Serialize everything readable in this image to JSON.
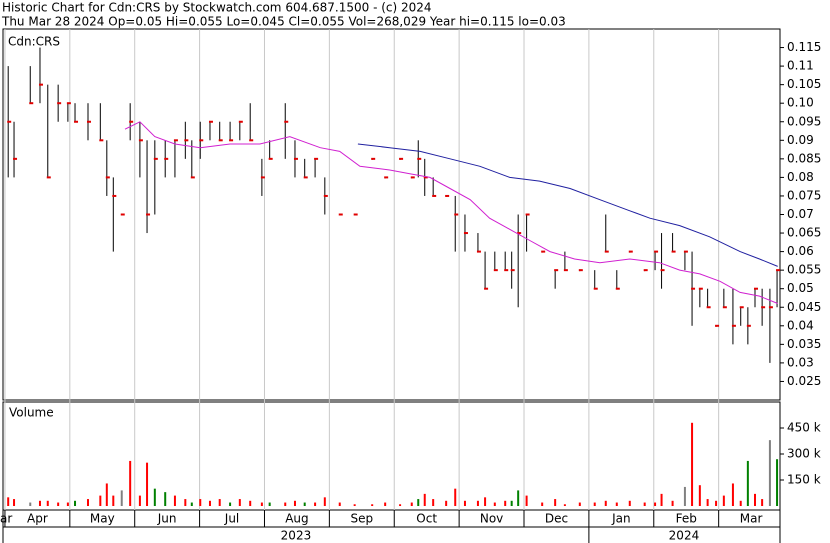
{
  "chart_data": {
    "type": "ohlc",
    "title": "Historic Chart for Cdn:CRS by Stockwatch.com 604.687.1500 - (c) 2024",
    "subtitle": "Thu Mar 28 2024  Op=0.05  Hi=0.055  Lo=0.045  Cl=0.055  Vol=268,029  Year hi=0.115  lo=0.03",
    "symbol_label": "Cdn:CRS",
    "volume_label": "Volume",
    "x": [
      1.05,
      1.14,
      1.39,
      1.54,
      1.66,
      1.82,
      1.97,
      2.08,
      2.28,
      2.47,
      2.57,
      2.67,
      2.8,
      2.93,
      3.08,
      3.19,
      3.31,
      3.47,
      3.62,
      3.78,
      3.88,
      4.01,
      4.16,
      4.31,
      4.47,
      4.62,
      4.78,
      4.96,
      5.08,
      5.32,
      5.47,
      5.62,
      5.78,
      5.93,
      6.16,
      6.39,
      6.66,
      6.86,
      7.09,
      7.27,
      7.37,
      7.47,
      7.6,
      7.8,
      7.94,
      8.09,
      8.29,
      8.4,
      8.55,
      8.71,
      8.81,
      8.91,
      9.04,
      9.28,
      9.48,
      9.63,
      9.86,
      10.09,
      10.26,
      10.43,
      10.63,
      10.86,
      11.02,
      11.12,
      11.29,
      11.48,
      11.59,
      11.71,
      11.83,
      11.96,
      12.08,
      12.22,
      12.34,
      12.45,
      12.56,
      12.67,
      12.79,
      12.9
    ],
    "high": [
      0.11,
      0.095,
      0.11,
      0.115,
      0.105,
      0.105,
      0.1,
      0.1,
      0.1,
      0.1,
      0.09,
      0.08,
      0.07,
      0.1,
      0.095,
      0.09,
      0.09,
      0.09,
      0.09,
      0.095,
      0.09,
      0.095,
      0.095,
      0.095,
      0.095,
      0.095,
      0.1,
      0.085,
      0.09,
      0.1,
      0.09,
      0.085,
      0.085,
      0.08,
      0.07,
      0.07,
      0.085,
      0.08,
      0.085,
      0.08,
      0.09,
      0.085,
      0.08,
      0.075,
      0.075,
      0.07,
      0.065,
      0.06,
      0.06,
      0.06,
      0.06,
      0.07,
      0.07,
      0.06,
      0.055,
      0.06,
      0.055,
      0.055,
      0.07,
      0.055,
      0.06,
      0.055,
      0.06,
      0.065,
      0.065,
      0.06,
      0.06,
      0.05,
      0.05,
      0.04,
      0.05,
      0.05,
      0.045,
      0.045,
      0.05,
      0.05,
      0.05,
      0.055
    ],
    "low": [
      0.08,
      0.08,
      0.1,
      0.1,
      0.08,
      0.095,
      0.095,
      0.095,
      0.09,
      0.09,
      0.075,
      0.06,
      0.07,
      0.09,
      0.08,
      0.065,
      0.07,
      0.08,
      0.08,
      0.085,
      0.08,
      0.085,
      0.09,
      0.09,
      0.09,
      0.09,
      0.09,
      0.075,
      0.085,
      0.085,
      0.08,
      0.08,
      0.08,
      0.07,
      0.07,
      0.07,
      0.085,
      0.08,
      0.085,
      0.08,
      0.08,
      0.075,
      0.075,
      0.075,
      0.06,
      0.06,
      0.06,
      0.05,
      0.055,
      0.055,
      0.05,
      0.045,
      0.06,
      0.06,
      0.05,
      0.055,
      0.055,
      0.05,
      0.06,
      0.05,
      0.06,
      0.055,
      0.055,
      0.05,
      0.06,
      0.055,
      0.04,
      0.045,
      0.045,
      0.04,
      0.045,
      0.035,
      0.04,
      0.035,
      0.045,
      0.04,
      0.03,
      0.045
    ],
    "close": [
      0.095,
      0.085,
      0.1,
      0.105,
      0.08,
      0.1,
      0.1,
      0.095,
      0.095,
      0.09,
      0.08,
      0.075,
      0.07,
      0.095,
      0.09,
      0.07,
      0.085,
      0.085,
      0.09,
      0.09,
      0.08,
      0.09,
      0.095,
      0.09,
      0.09,
      0.095,
      0.09,
      0.08,
      0.085,
      0.095,
      0.085,
      0.08,
      0.085,
      0.075,
      0.07,
      0.07,
      0.085,
      0.08,
      0.085,
      0.08,
      0.085,
      0.08,
      0.075,
      0.075,
      0.07,
      0.065,
      0.06,
      0.05,
      0.055,
      0.055,
      0.055,
      0.065,
      0.07,
      0.06,
      0.055,
      0.055,
      0.055,
      0.05,
      0.06,
      0.05,
      0.06,
      0.055,
      0.06,
      0.055,
      0.06,
      0.06,
      0.05,
      0.05,
      0.045,
      0.04,
      0.045,
      0.04,
      0.045,
      0.04,
      0.05,
      0.045,
      0.045,
      0.055
    ],
    "volume": [
      50000,
      40000,
      20000,
      30000,
      30000,
      20000,
      20000,
      30000,
      40000,
      60000,
      130000,
      60000,
      90000,
      260000,
      60000,
      250000,
      100000,
      80000,
      60000,
      40000,
      20000,
      40000,
      30000,
      40000,
      20000,
      40000,
      30000,
      20000,
      20000,
      20000,
      30000,
      20000,
      20000,
      50000,
      20000,
      10000,
      10000,
      20000,
      10000,
      20000,
      40000,
      70000,
      40000,
      30000,
      100000,
      30000,
      30000,
      50000,
      20000,
      30000,
      30000,
      90000,
      60000,
      20000,
      40000,
      10000,
      20000,
      20000,
      30000,
      20000,
      30000,
      20000,
      20000,
      70000,
      30000,
      110000,
      480000,
      120000,
      40000,
      30000,
      60000,
      130000,
      30000,
      260000,
      70000,
      40000,
      380000,
      270000
    ],
    "volume_colors": [
      "red",
      "red",
      "gray",
      "red",
      "red",
      "red",
      "red",
      "green",
      "red",
      "red",
      "red",
      "red",
      "gray",
      "red",
      "red",
      "red",
      "green",
      "green",
      "red",
      "red",
      "green",
      "red",
      "red",
      "red",
      "green",
      "red",
      "red",
      "red",
      "green",
      "red",
      "red",
      "green",
      "red",
      "red",
      "red",
      "red",
      "red",
      "red",
      "red",
      "red",
      "green",
      "red",
      "red",
      "red",
      "red",
      "red",
      "red",
      "red",
      "red",
      "red",
      "green",
      "green",
      "red",
      "red",
      "red",
      "red",
      "red",
      "red",
      "red",
      "red",
      "red",
      "red",
      "red",
      "red",
      "red",
      "gray",
      "red",
      "red",
      "red",
      "red",
      "red",
      "red",
      "red",
      "green",
      "red",
      "red",
      "gray",
      "green"
    ],
    "ma_short": {
      "color": "#d020d0",
      "x": [
        2.85,
        3.08,
        3.31,
        3.62,
        4.01,
        4.47,
        4.93,
        5.39,
        5.86,
        6.16,
        6.47,
        6.93,
        7.24,
        7.55,
        7.86,
        8.17,
        8.47,
        8.78,
        9.09,
        9.4,
        9.78,
        10.17,
        10.63,
        11.09,
        11.4,
        11.71,
        12.02,
        12.33,
        12.63,
        12.91
      ],
      "values": [
        0.093,
        0.095,
        0.091,
        0.089,
        0.088,
        0.089,
        0.089,
        0.091,
        0.088,
        0.087,
        0.083,
        0.082,
        0.081,
        0.08,
        0.077,
        0.074,
        0.069,
        0.066,
        0.063,
        0.06,
        0.058,
        0.057,
        0.058,
        0.057,
        0.055,
        0.054,
        0.052,
        0.049,
        0.048,
        0.046
      ]
    },
    "ma_long": {
      "color": "#2020a0",
      "x": [
        6.44,
        6.93,
        7.4,
        7.86,
        8.32,
        8.78,
        9.24,
        9.71,
        10.17,
        10.63,
        10.94,
        11.4,
        11.86,
        12.33,
        12.63,
        12.91
      ],
      "values": [
        0.089,
        0.088,
        0.087,
        0.085,
        0.083,
        0.08,
        0.079,
        0.077,
        0.074,
        0.071,
        0.069,
        0.067,
        0.064,
        0.06,
        0.058,
        0.056
      ]
    },
    "bar_color": "#000000",
    "tick_color": "#e00000",
    "xlim": [
      0.97,
      12.93
    ],
    "xticks": [
      {
        "value": 1.02,
        "label": "ar"
      },
      {
        "value": 1.5,
        "label": "Apr"
      },
      {
        "value": 2.5,
        "label": "May"
      },
      {
        "value": 3.5,
        "label": "Jun"
      },
      {
        "value": 4.5,
        "label": "Jul"
      },
      {
        "value": 5.5,
        "label": "Aug"
      },
      {
        "value": 6.5,
        "label": "Sep"
      },
      {
        "value": 7.5,
        "label": "Oct"
      },
      {
        "value": 8.5,
        "label": "Nov"
      },
      {
        "value": 9.5,
        "label": "Dec"
      },
      {
        "value": 10.5,
        "label": "Jan"
      },
      {
        "value": 11.5,
        "label": "Feb"
      },
      {
        "value": 12.5,
        "label": "Mar"
      }
    ],
    "xgrid": [
      1,
      2,
      3,
      4,
      5,
      6,
      7,
      8,
      9,
      10,
      11,
      12
    ],
    "years": [
      "2023",
      "2024"
    ],
    "ylim": [
      0.02,
      0.12
    ],
    "yticks": [
      0.025,
      0.03,
      0.035,
      0.04,
      0.045,
      0.05,
      0.055,
      0.06,
      0.065,
      0.07,
      0.075,
      0.08,
      0.085,
      0.09,
      0.095,
      {
        "value": 0.1,
        "label": "0.10"
      },
      0.105,
      0.11,
      0.115
    ],
    "volume_ylim": [
      0,
      600000
    ],
    "volume_yticks": [
      {
        "value": 150000,
        "label": "150 k"
      },
      {
        "value": 300000,
        "label": "300 k"
      },
      {
        "value": 450000,
        "label": "450 k"
      }
    ]
  }
}
